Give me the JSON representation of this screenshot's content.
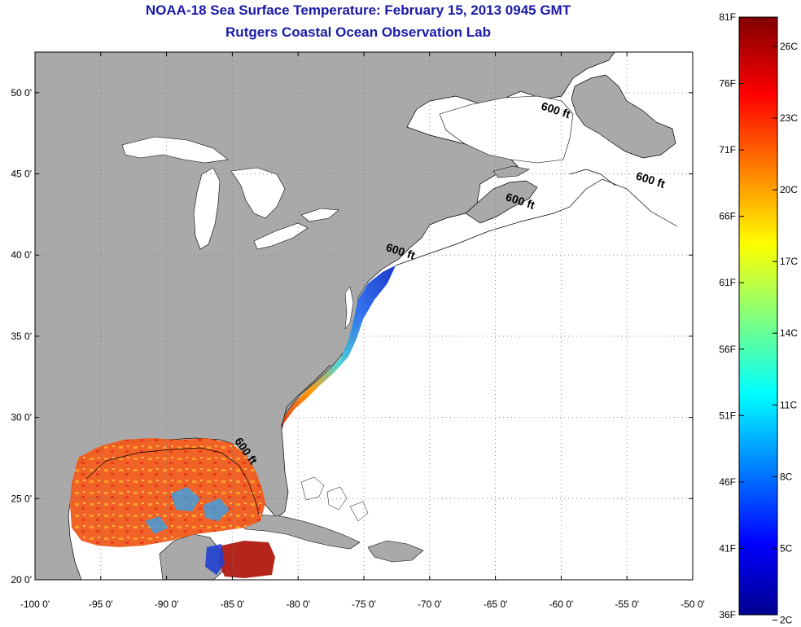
{
  "header": {
    "title": "NOAA-18 Sea Surface Temperature:  February 15, 2013 0945 GMT",
    "subtitle": "Rutgers Coastal Ocean Observation Lab"
  },
  "map": {
    "lon_range": [
      -100,
      -50
    ],
    "lat_range": [
      20,
      52.5
    ],
    "x_ticks": [
      "-100 0'",
      "-95 0'",
      "-90 0'",
      "-85 0'",
      "-80 0'",
      "-75 0'",
      "-70 0'",
      "-65 0'",
      "-60 0'",
      "-55 0'",
      "-50 0'"
    ],
    "y_ticks": [
      "20 0'",
      "25 0'",
      "30 0'",
      "35 0'",
      "40 0'",
      "45 0'",
      "50 0'"
    ],
    "isobath_labels": [
      {
        "text": "600 ft",
        "lon": -60.5,
        "lat": 48.7
      },
      {
        "text": "600 ft",
        "lon": -53.3,
        "lat": 44.4
      },
      {
        "text": "600 ft",
        "lon": -63.2,
        "lat": 43.1
      },
      {
        "text": "600 ft",
        "lon": -72.3,
        "lat": 40.0
      },
      {
        "text": "600 ft",
        "lon": -84.2,
        "lat": 27.8
      }
    ],
    "land_color": "#a9a9a9",
    "grid": "dotted"
  },
  "colorbar": {
    "f_labels": [
      "81F",
      "76F",
      "71F",
      "66F",
      "61F",
      "56F",
      "51F",
      "46F",
      "41F",
      "36F"
    ],
    "c_labels": [
      "26C",
      "23C",
      "20C",
      "17C",
      "14C",
      "11C",
      "8C",
      "5C",
      "2C"
    ],
    "colormap": "jet",
    "colors": [
      "#00008f",
      "#0000ff",
      "#00ffff",
      "#ffff00",
      "#ff0000",
      "#800000"
    ]
  }
}
